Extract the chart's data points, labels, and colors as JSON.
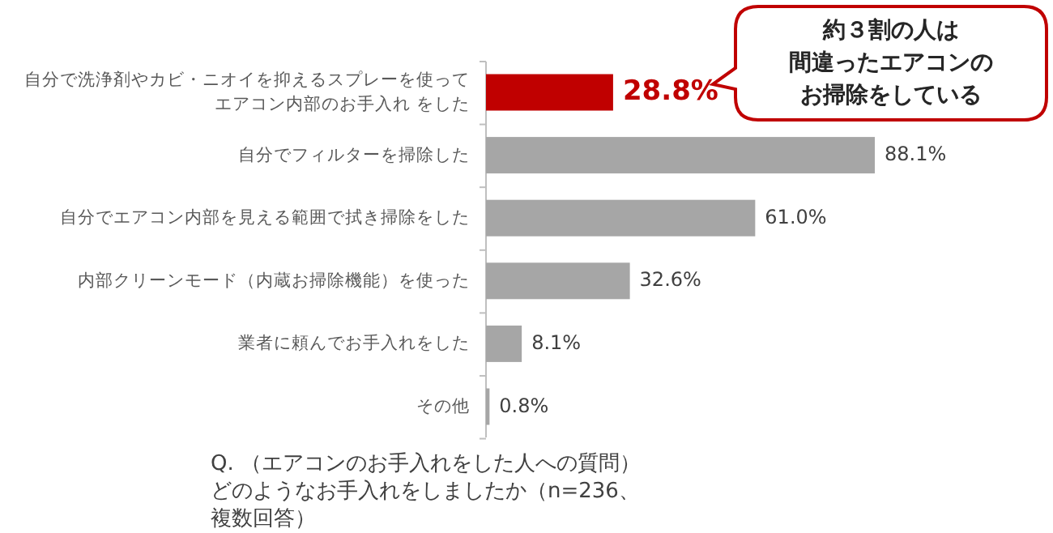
{
  "chart_data": {
    "type": "bar",
    "orientation": "horizontal",
    "categories": [
      "自分で洗浄剤やカビ・ニオイを抑えるスプレーを使ってエアコン内部のお手入れ をした",
      "自分でフィルターを掃除した",
      "自分でエアコン内部を見える範囲で拭き掃除をした",
      "内部クリーンモード（内蔵お掃除機能）を使った",
      "業者に頼んでお手入れをした",
      "その他"
    ],
    "values": [
      28.8,
      88.1,
      61.0,
      32.6,
      8.1,
      0.8
    ],
    "value_labels": [
      "28.8%",
      "88.1%",
      "61.0%",
      "32.6%",
      "8.1%",
      "0.8%"
    ],
    "colors": [
      "#c00000",
      "#a6a6a6",
      "#a6a6a6",
      "#a6a6a6",
      "#a6a6a6",
      "#a6a6a6"
    ],
    "annotations": [
      "約３割の人は間違ったエアコンのお掃除をしている",
      "Q. （エアコンのお手入れをした人への質問）どのようなお手入れをしましたか（n=236、複数回答）"
    ]
  }
}
